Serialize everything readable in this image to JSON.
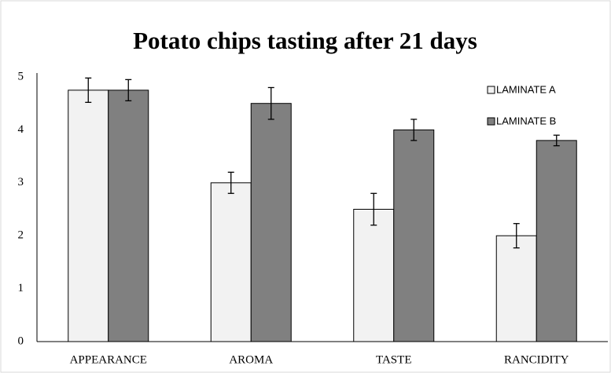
{
  "chart_data": {
    "type": "bar",
    "title": "Potato chips tasting after 21 days",
    "categories": [
      "APPEARANCE",
      "AROMA",
      "TASTE",
      "RANCIDITY"
    ],
    "series": [
      {
        "name": "LAMINATE A",
        "color": "#f2f2f2",
        "values": [
          4.75,
          3.0,
          2.5,
          2.0
        ],
        "errors": [
          0.23,
          0.2,
          0.3,
          0.23
        ]
      },
      {
        "name": "LAMINATE B",
        "color": "#808080",
        "values": [
          4.75,
          4.5,
          4.0,
          3.8
        ],
        "errors": [
          0.2,
          0.3,
          0.2,
          0.1
        ]
      }
    ],
    "ylim": [
      0,
      5
    ],
    "yticks": [
      0,
      1,
      2,
      3,
      4,
      5
    ],
    "grid": false,
    "legend": "top-right"
  }
}
